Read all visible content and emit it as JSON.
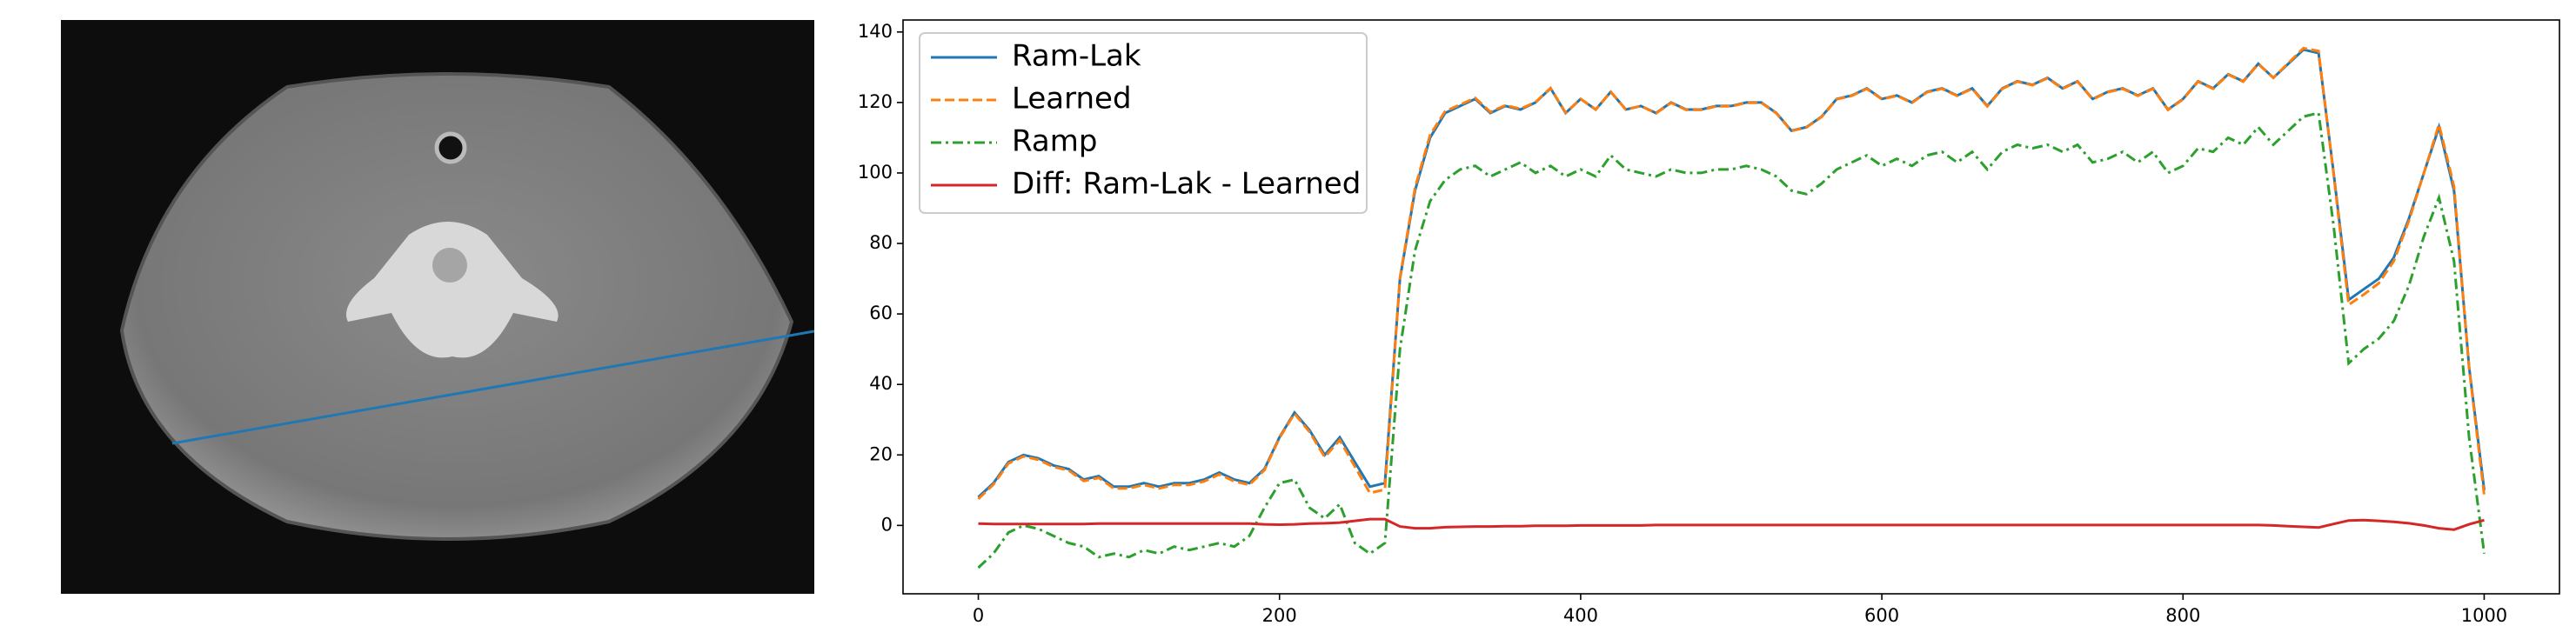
{
  "chart_data": {
    "type": "line",
    "x": [
      0,
      10,
      20,
      30,
      40,
      50,
      60,
      70,
      80,
      90,
      100,
      110,
      120,
      130,
      140,
      150,
      160,
      170,
      180,
      190,
      200,
      210,
      220,
      230,
      240,
      250,
      260,
      270,
      280,
      290,
      300,
      310,
      320,
      330,
      340,
      350,
      360,
      370,
      380,
      390,
      400,
      410,
      420,
      430,
      440,
      450,
      460,
      470,
      480,
      490,
      500,
      510,
      520,
      530,
      540,
      550,
      560,
      570,
      580,
      590,
      600,
      610,
      620,
      630,
      640,
      650,
      660,
      670,
      680,
      690,
      700,
      710,
      720,
      730,
      740,
      750,
      760,
      770,
      780,
      790,
      800,
      810,
      820,
      830,
      840,
      850,
      860,
      870,
      880,
      890,
      900,
      910,
      920,
      930,
      940,
      950,
      960,
      970,
      980,
      990,
      1000
    ],
    "series": [
      {
        "name": "Ram-Lak",
        "color": "#1f77b4",
        "dash": "solid",
        "values": [
          8,
          12,
          18,
          20,
          19,
          17,
          16,
          13,
          14,
          11,
          11,
          12,
          11,
          12,
          12,
          13,
          15,
          13,
          12,
          16,
          25,
          32,
          27,
          20,
          25,
          18,
          11,
          12,
          70,
          95,
          110,
          117,
          119,
          121,
          117,
          119,
          118,
          120,
          124,
          117,
          121,
          118,
          123,
          118,
          119,
          117,
          120,
          118,
          118,
          119,
          119,
          120,
          120,
          117,
          112,
          113,
          116,
          121,
          122,
          124,
          121,
          122,
          120,
          123,
          124,
          122,
          124,
          119,
          124,
          126,
          125,
          127,
          124,
          126,
          121,
          123,
          124,
          122,
          124,
          118,
          121,
          126,
          124,
          128,
          126,
          131,
          127,
          131,
          135,
          134,
          100,
          64,
          67,
          70,
          76,
          87,
          100,
          113,
          95,
          45,
          10
        ]
      },
      {
        "name": "Learned",
        "color": "#ff7f0e",
        "dash": "dashed",
        "values": [
          7.5,
          11.6,
          17.6,
          19.6,
          18.6,
          16.6,
          15.6,
          12.6,
          13.5,
          10.5,
          10.5,
          11.5,
          10.5,
          11.5,
          11.5,
          12.5,
          14.5,
          12.5,
          11.5,
          15.7,
          24.8,
          31.7,
          26.5,
          19.4,
          24.2,
          16.7,
          9.2,
          10.2,
          70.3,
          95.8,
          110.8,
          117.5,
          119.4,
          121.3,
          117.3,
          119.2,
          118.2,
          120.1,
          124.1,
          117.1,
          121,
          118,
          123,
          118,
          119,
          116.9,
          119.9,
          117.9,
          117.9,
          118.9,
          118.9,
          119.9,
          119.9,
          116.9,
          111.9,
          112.9,
          115.9,
          120.9,
          121.9,
          123.9,
          120.9,
          121.9,
          119.9,
          122.9,
          123.9,
          121.9,
          123.9,
          118.9,
          123.9,
          125.9,
          124.9,
          126.9,
          123.9,
          125.9,
          120.9,
          122.9,
          123.9,
          121.9,
          123.9,
          117.9,
          120.9,
          125.9,
          123.9,
          127.9,
          125.9,
          130.9,
          127,
          131.2,
          135.4,
          134.6,
          99.6,
          62.6,
          65.5,
          68.7,
          75,
          86.4,
          100,
          113.8,
          96.2,
          44.7,
          8.5
        ]
      },
      {
        "name": "Ramp",
        "color": "#2ca02c",
        "dash": "dashdot",
        "values": [
          -12,
          -8,
          -2,
          0,
          -1,
          -3,
          -5,
          -6,
          -9,
          -8,
          -9,
          -7,
          -8,
          -6,
          -7,
          -6,
          -5,
          -6,
          -3,
          5,
          12,
          13,
          5,
          2,
          6,
          -5,
          -8,
          -5,
          50,
          78,
          92,
          98,
          101,
          102,
          99,
          101,
          103,
          100,
          102,
          99,
          101,
          99,
          105,
          101,
          100,
          99,
          101,
          100,
          100,
          101,
          101,
          102,
          101,
          99,
          95,
          94,
          97,
          101,
          103,
          105,
          102,
          104,
          102,
          105,
          106,
          103,
          106,
          101,
          106,
          108,
          107,
          108,
          106,
          108,
          103,
          104,
          106,
          103,
          106,
          100,
          102,
          107,
          106,
          110,
          108,
          113,
          108,
          112,
          116,
          117,
          85,
          46,
          50,
          53,
          58,
          68,
          82,
          93,
          75,
          25,
          -8
        ]
      },
      {
        "name": "Diff: Ram-Lak - Learned",
        "color": "#d62728",
        "dash": "solid",
        "values": [
          0.5,
          0.4,
          0.4,
          0.4,
          0.4,
          0.4,
          0.4,
          0.4,
          0.5,
          0.5,
          0.5,
          0.5,
          0.5,
          0.5,
          0.5,
          0.5,
          0.5,
          0.5,
          0.5,
          0.3,
          0.2,
          0.3,
          0.5,
          0.6,
          0.8,
          1.3,
          1.8,
          1.8,
          -0.3,
          -0.8,
          -0.8,
          -0.5,
          -0.4,
          -0.3,
          -0.3,
          -0.2,
          -0.2,
          -0.1,
          -0.1,
          -0.1,
          0,
          0,
          0,
          0,
          0,
          0.1,
          0.1,
          0.1,
          0.1,
          0.1,
          0.1,
          0.1,
          0.1,
          0.1,
          0.1,
          0.1,
          0.1,
          0.1,
          0.1,
          0.1,
          0.1,
          0.1,
          0.1,
          0.1,
          0.1,
          0.1,
          0.1,
          0.1,
          0.1,
          0.1,
          0.1,
          0.1,
          0.1,
          0.1,
          0.1,
          0.1,
          0.1,
          0.1,
          0.1,
          0.1,
          0.1,
          0.1,
          0.1,
          0.1,
          0.1,
          0.1,
          0,
          -0.2,
          -0.4,
          -0.6,
          0.4,
          1.4,
          1.5,
          1.3,
          1,
          0.6,
          0,
          -0.8,
          -1.2,
          0.3,
          1.5
        ]
      }
    ],
    "xlim": [
      -50,
      1050
    ],
    "ylim": [
      -19.4,
      143.4
    ],
    "xticks": [
      0,
      200,
      400,
      600,
      800,
      1000
    ],
    "yticks": [
      0,
      20,
      40,
      60,
      80,
      100,
      120,
      140
    ],
    "legend": "upper left"
  }
}
